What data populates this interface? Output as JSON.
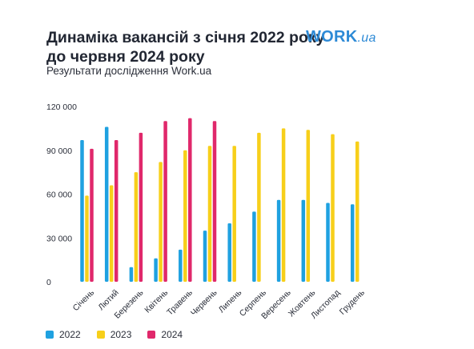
{
  "header": {
    "title_line1": "Динаміка вакансій з січня 2022 року",
    "title_line2": "до червня 2024 року",
    "subtitle": "Результати дослідження Work.ua",
    "logo_main": "WORK",
    "logo_suffix": ".ua"
  },
  "colors": {
    "2022": "#1fa1e0",
    "2023": "#f7cf1a",
    "2024": "#e0286b",
    "logo": "#2d8ad6"
  },
  "chart_data": {
    "type": "bar",
    "title": "Динаміка вакансій з січня 2022 року до червня 2024 року",
    "xlabel": "",
    "ylabel": "",
    "ylim": [
      0,
      120000
    ],
    "y_ticks": [
      0,
      30000,
      60000,
      90000,
      120000
    ],
    "y_tick_labels": [
      "0",
      "30 000",
      "60 000",
      "90 000",
      "120 000"
    ],
    "grid": false,
    "legend_position": "bottom-left",
    "categories": [
      "Січень",
      "Лютий",
      "Березень",
      "Квітень",
      "Травень",
      "Червень",
      "Липень",
      "Серпень",
      "Вересень",
      "Жовтень",
      "Листопад",
      "Грудень"
    ],
    "series": [
      {
        "name": "2022",
        "color": "#1fa1e0",
        "values": [
          97000,
          106000,
          10000,
          16000,
          22000,
          35000,
          40000,
          48000,
          56000,
          56000,
          54000,
          53000
        ]
      },
      {
        "name": "2023",
        "color": "#f7cf1a",
        "values": [
          59000,
          66000,
          75000,
          82000,
          90000,
          93000,
          93000,
          102000,
          105000,
          104000,
          101000,
          96000
        ]
      },
      {
        "name": "2024",
        "color": "#e0286b",
        "values": [
          91000,
          97000,
          102000,
          110000,
          112000,
          110000,
          null,
          null,
          null,
          null,
          null,
          null
        ]
      }
    ]
  }
}
